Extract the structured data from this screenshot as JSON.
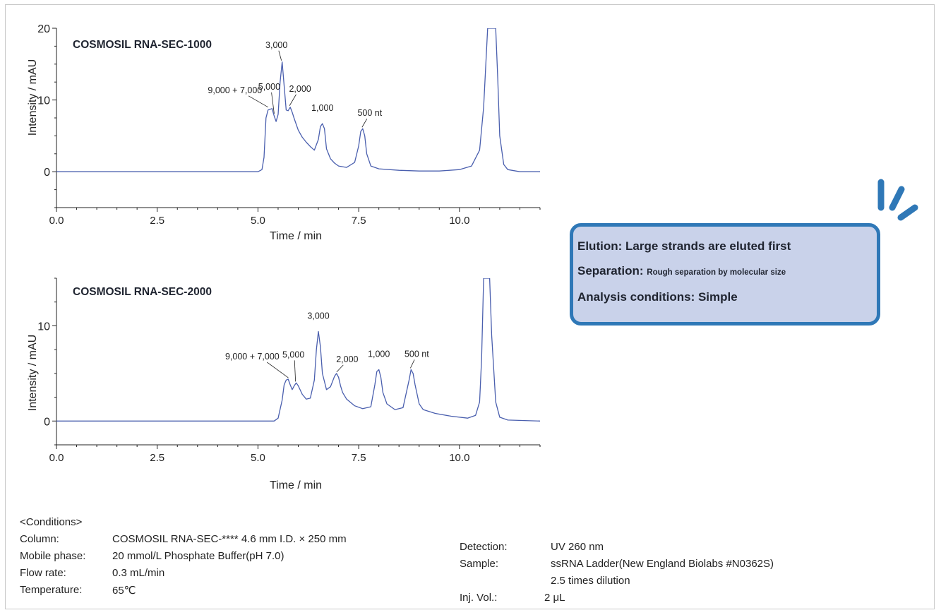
{
  "chart_data": [
    {
      "type": "line",
      "title": "COSMOSIL RNA-SEC-1000",
      "xlabel": "Time / min",
      "ylabel": "Intensity / mAU",
      "xlim": [
        0,
        12
      ],
      "ylim": [
        -5,
        20
      ],
      "x_ticks": [
        "0.0",
        "2.5",
        "5.0",
        "7.5",
        "10.0"
      ],
      "y_ticks": [
        "0",
        "10",
        "20"
      ],
      "line_color": "#4a5fae",
      "series": [
        {
          "x": [
            0,
            2,
            4,
            5.0,
            5.1,
            5.15,
            5.2,
            5.25,
            5.3,
            5.35,
            5.4,
            5.45,
            5.5,
            5.55,
            5.6,
            5.65,
            5.7,
            5.75,
            5.8,
            5.85,
            5.9,
            6.0,
            6.1,
            6.2,
            6.3,
            6.4,
            6.5,
            6.55,
            6.6,
            6.65,
            6.7,
            6.8,
            6.9,
            7.0,
            7.2,
            7.4,
            7.5,
            7.55,
            7.6,
            7.65,
            7.7,
            7.8,
            8.0,
            8.5,
            9.0,
            9.5,
            10.0,
            10.3,
            10.5,
            10.6,
            10.7,
            10.75,
            10.8,
            10.85,
            10.9,
            10.95,
            11.0,
            11.1,
            11.2,
            11.5,
            12
          ],
          "y": [
            0,
            0,
            0,
            0,
            0.3,
            2,
            7.5,
            8.6,
            8.7,
            8.8,
            7.8,
            7.0,
            8.0,
            12.5,
            15.3,
            12.0,
            8.6,
            8.5,
            9.0,
            8.3,
            7.4,
            5.8,
            4.8,
            4.1,
            3.5,
            3.0,
            4.5,
            6.3,
            6.7,
            6.0,
            3.2,
            1.8,
            1.2,
            0.8,
            0.6,
            1.3,
            3.6,
            5.6,
            6.0,
            5.0,
            2.5,
            0.8,
            0.4,
            0.2,
            0.1,
            0.1,
            0.3,
            0.8,
            3.0,
            9.0,
            20,
            20,
            20,
            20,
            20,
            13,
            5.0,
            1.0,
            0.3,
            0,
            0
          ]
        }
      ],
      "annotations": [
        {
          "text": "9,000 + 7,000",
          "x": 5.27,
          "y": 8.8
        },
        {
          "text": "5,000",
          "x": 5.42,
          "y": 7.9
        },
        {
          "text": "3,000",
          "x": 5.6,
          "y": 15.3
        },
        {
          "text": "2,000",
          "x": 5.8,
          "y": 9.0
        },
        {
          "text": "1,000",
          "x": 6.6,
          "y": 6.7
        },
        {
          "text": "500 nt",
          "x": 7.6,
          "y": 6.0
        }
      ]
    },
    {
      "type": "line",
      "title": "COSMOSIL RNA-SEC-2000",
      "xlabel": "Time / min",
      "ylabel": "Intensity / mAU",
      "xlim": [
        0,
        12
      ],
      "ylim": [
        -2.5,
        15
      ],
      "x_ticks": [
        "0.0",
        "2.5",
        "5.0",
        "7.5",
        "10.0"
      ],
      "y_ticks": [
        "0",
        "10"
      ],
      "line_color": "#4a5fae",
      "series": [
        {
          "x": [
            0,
            2,
            4,
            5.4,
            5.5,
            5.6,
            5.65,
            5.7,
            5.75,
            5.8,
            5.85,
            5.9,
            5.95,
            6.0,
            6.1,
            6.2,
            6.3,
            6.4,
            6.45,
            6.5,
            6.55,
            6.6,
            6.7,
            6.8,
            6.9,
            6.95,
            7.0,
            7.05,
            7.1,
            7.2,
            7.4,
            7.6,
            7.8,
            7.9,
            7.95,
            8.0,
            8.05,
            8.1,
            8.2,
            8.4,
            8.6,
            8.75,
            8.8,
            8.85,
            8.9,
            9.0,
            9.1,
            9.4,
            9.8,
            10.2,
            10.4,
            10.5,
            10.55,
            10.6,
            10.65,
            10.7,
            10.75,
            10.8,
            10.9,
            11.0,
            11.2,
            12
          ],
          "y": [
            0,
            0,
            0,
            0,
            0.3,
            2.2,
            3.8,
            4.3,
            4.4,
            3.8,
            3.3,
            3.7,
            4.0,
            3.7,
            2.8,
            2.3,
            2.4,
            4.3,
            7.5,
            9.4,
            7.8,
            5.0,
            3.3,
            3.6,
            4.7,
            5.0,
            4.6,
            3.7,
            3.0,
            2.3,
            1.6,
            1.3,
            1.5,
            3.8,
            5.2,
            5.4,
            4.6,
            3.0,
            1.8,
            1.2,
            1.4,
            4.3,
            5.4,
            5.0,
            3.8,
            1.8,
            1.2,
            0.8,
            0.5,
            0.3,
            0.6,
            2.0,
            6.5,
            15,
            15,
            15,
            15,
            9.0,
            2.0,
            0.4,
            0.1,
            0
          ]
        }
      ],
      "annotations": [
        {
          "text": "9,000 + 7,000",
          "x": 5.77,
          "y": 4.4
        },
        {
          "text": "5,000",
          "x": 5.95,
          "y": 4.0
        },
        {
          "text": "3,000",
          "x": 6.5,
          "y": 9.4
        },
        {
          "text": "2,000",
          "x": 6.97,
          "y": 5.0
        },
        {
          "text": "1,000",
          "x": 8.0,
          "y": 5.4
        },
        {
          "text": "500 nt",
          "x": 8.8,
          "y": 5.4
        }
      ]
    }
  ],
  "callout": {
    "elution_label": "Elution: Large strands are eluted first",
    "separation_label": "Separation:",
    "separation_value": "Rough separation by molecular size",
    "analysis_label": "Analysis conditions: Simple",
    "fill_color": "#c9d2ea",
    "border_color": "#2f78b7"
  },
  "conditions": {
    "title": "<Conditions>",
    "column_key": "Column:",
    "column_val": "COSMOSIL RNA-SEC-****  4.6 mm I.D. × 250 mm",
    "mobile_key": "Mobile phase:",
    "mobile_val": "20 mmol/L Phosphate Buffer(pH 7.0)",
    "flow_key": "Flow rate:",
    "flow_val": "0.3 mL/min",
    "temp_key": "Temperature:",
    "temp_val": "65℃",
    "detection_key": "Detection:",
    "detection_val": "UV 260 nm",
    "sample_key": "Sample:",
    "sample_val": "ssRNA Ladder(New England Biolabs #N0362S)",
    "sample_val2": "2.5 times dilution",
    "inj_key": "Inj. Vol.:",
    "inj_val": "2 μL"
  }
}
